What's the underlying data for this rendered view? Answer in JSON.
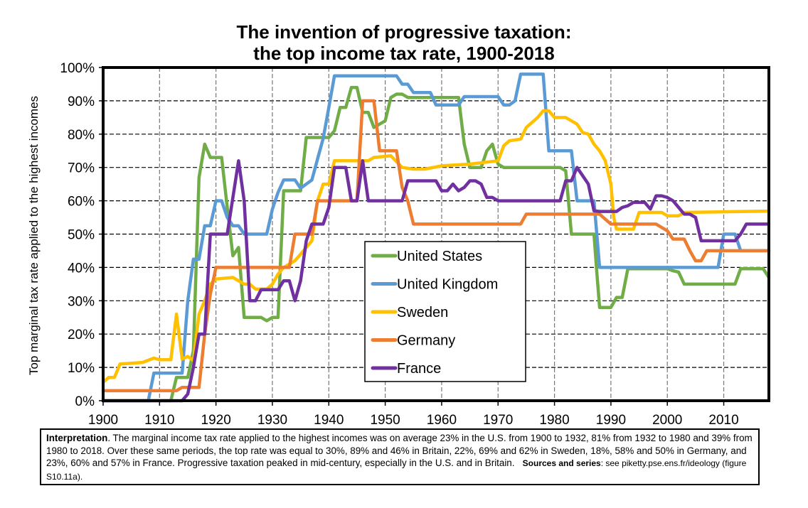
{
  "chart_data": {
    "type": "line",
    "title": [
      "The invention of progressive taxation:",
      "the top income tax rate, 1900-2018"
    ],
    "xlabel": "",
    "ylabel": "Top marginal tax rate applied to the highest incomes",
    "xlim": [
      1900,
      2018
    ],
    "ylim": [
      0,
      100
    ],
    "x_ticks": [
      1900,
      1910,
      1920,
      1930,
      1940,
      1950,
      1960,
      1970,
      1980,
      1990,
      2000,
      2010
    ],
    "y_ticks": [
      0,
      10,
      20,
      30,
      40,
      50,
      60,
      70,
      80,
      90,
      100
    ],
    "y_tick_labels": [
      "0%",
      "10%",
      "20%",
      "30%",
      "40%",
      "50%",
      "60%",
      "70%",
      "80%",
      "90%",
      "100%"
    ],
    "grid": true,
    "legend_position": "center-bottom",
    "series": [
      {
        "name": "United States",
        "color": "#70AD47",
        "points": [
          [
            1900,
            0
          ],
          [
            1912,
            0
          ],
          [
            1913,
            7
          ],
          [
            1915,
            7
          ],
          [
            1916,
            15
          ],
          [
            1917,
            67
          ],
          [
            1918,
            77
          ],
          [
            1919,
            73
          ],
          [
            1921,
            73
          ],
          [
            1922,
            58
          ],
          [
            1923,
            43.5
          ],
          [
            1924,
            46
          ],
          [
            1925,
            25
          ],
          [
            1928,
            25
          ],
          [
            1929,
            24
          ],
          [
            1930,
            25
          ],
          [
            1931,
            25
          ],
          [
            1932,
            63
          ],
          [
            1935,
            63
          ],
          [
            1936,
            79
          ],
          [
            1940,
            79
          ],
          [
            1941,
            81
          ],
          [
            1942,
            88
          ],
          [
            1943,
            88
          ],
          [
            1944,
            94
          ],
          [
            1945,
            94
          ],
          [
            1946,
            86.5
          ],
          [
            1947,
            86.5
          ],
          [
            1948,
            82
          ],
          [
            1950,
            84
          ],
          [
            1951,
            91
          ],
          [
            1952,
            92
          ],
          [
            1953,
            92
          ],
          [
            1954,
            91
          ],
          [
            1963,
            91
          ],
          [
            1964,
            77
          ],
          [
            1965,
            70
          ],
          [
            1967,
            70
          ],
          [
            1968,
            75
          ],
          [
            1969,
            77
          ],
          [
            1970,
            71
          ],
          [
            1971,
            70
          ],
          [
            1981,
            70
          ],
          [
            1982,
            69
          ],
          [
            1983,
            50
          ],
          [
            1987,
            50
          ],
          [
            1987.5,
            38.5
          ],
          [
            1988,
            28
          ],
          [
            1990,
            28
          ],
          [
            1991,
            31
          ],
          [
            1992,
            31
          ],
          [
            1993,
            39.6
          ],
          [
            2000,
            39.6
          ],
          [
            2001,
            39
          ],
          [
            2002,
            38.6
          ],
          [
            2003,
            35
          ],
          [
            2012,
            35
          ],
          [
            2013,
            39.6
          ],
          [
            2017,
            39.6
          ],
          [
            2018,
            37
          ]
        ]
      },
      {
        "name": "United Kingdom",
        "color": "#5B9BD5",
        "points": [
          [
            1900,
            0
          ],
          [
            1908,
            0
          ],
          [
            1909,
            8.3
          ],
          [
            1914,
            8.3
          ],
          [
            1915,
            30
          ],
          [
            1916,
            42.5
          ],
          [
            1917,
            42.5
          ],
          [
            1918,
            52.5
          ],
          [
            1919,
            52.5
          ],
          [
            1920,
            60
          ],
          [
            1921,
            60
          ],
          [
            1922,
            55
          ],
          [
            1923,
            52.5
          ],
          [
            1924,
            52.5
          ],
          [
            1925,
            50
          ],
          [
            1929,
            50
          ],
          [
            1930,
            57.5
          ],
          [
            1931,
            62.5
          ],
          [
            1932,
            66.25
          ],
          [
            1934,
            66.25
          ],
          [
            1935,
            63.75
          ],
          [
            1937,
            66.25
          ],
          [
            1938,
            72.5
          ],
          [
            1939,
            78.75
          ],
          [
            1940,
            88
          ],
          [
            1941,
            97.5
          ],
          [
            1952,
            97.5
          ],
          [
            1953,
            95
          ],
          [
            1954,
            95
          ],
          [
            1955,
            92.5
          ],
          [
            1958,
            92.5
          ],
          [
            1959,
            88.75
          ],
          [
            1963,
            88.75
          ],
          [
            1964,
            91.25
          ],
          [
            1970,
            91.25
          ],
          [
            1971,
            88.75
          ],
          [
            1972,
            88.75
          ],
          [
            1973,
            90
          ],
          [
            1974,
            98
          ],
          [
            1978,
            98
          ],
          [
            1979,
            75
          ],
          [
            1983,
            75
          ],
          [
            1984,
            60
          ],
          [
            1987,
            60
          ],
          [
            1988,
            40
          ],
          [
            2009,
            40
          ],
          [
            2010,
            50
          ],
          [
            2012,
            50
          ],
          [
            2013,
            45
          ],
          [
            2018,
            45
          ]
        ]
      },
      {
        "name": "Sweden",
        "color": "#FFC000",
        "points": [
          [
            1900,
            5.5
          ],
          [
            1901,
            7
          ],
          [
            1902,
            7
          ],
          [
            1903,
            11
          ],
          [
            1907,
            11.5
          ],
          [
            1909,
            12.8
          ],
          [
            1910,
            12.3
          ],
          [
            1912,
            12.3
          ],
          [
            1913,
            26
          ],
          [
            1914,
            12.5
          ],
          [
            1915,
            13.3
          ],
          [
            1916,
            12
          ],
          [
            1917,
            26
          ],
          [
            1918,
            30
          ],
          [
            1919,
            35
          ],
          [
            1920,
            36.5
          ],
          [
            1923,
            37
          ],
          [
            1924,
            36
          ],
          [
            1925,
            35
          ],
          [
            1926,
            35
          ],
          [
            1927,
            33.5
          ],
          [
            1929,
            33.5
          ],
          [
            1930,
            35
          ],
          [
            1931,
            38
          ],
          [
            1932,
            40
          ],
          [
            1934,
            42
          ],
          [
            1936,
            46
          ],
          [
            1937,
            48
          ],
          [
            1938,
            60
          ],
          [
            1939,
            65
          ],
          [
            1940,
            65
          ],
          [
            1941,
            72
          ],
          [
            1943,
            72
          ],
          [
            1947,
            72
          ],
          [
            1948,
            73
          ],
          [
            1951,
            73.5
          ],
          [
            1953,
            70
          ],
          [
            1955,
            69.5
          ],
          [
            1957,
            69.5
          ],
          [
            1960,
            70.5
          ],
          [
            1965,
            71
          ],
          [
            1970,
            72
          ],
          [
            1971,
            76.5
          ],
          [
            1972,
            78
          ],
          [
            1974,
            78.5
          ],
          [
            1975,
            82
          ],
          [
            1977,
            85
          ],
          [
            1978,
            87
          ],
          [
            1979,
            87
          ],
          [
            1980,
            85
          ],
          [
            1982,
            85
          ],
          [
            1984,
            83
          ],
          [
            1985,
            80.5
          ],
          [
            1986,
            80
          ],
          [
            1987,
            77
          ],
          [
            1988,
            75
          ],
          [
            1989,
            72
          ],
          [
            1990,
            65
          ],
          [
            1990.5,
            55
          ],
          [
            1991,
            51.5
          ],
          [
            1994,
            51.5
          ],
          [
            1995,
            56.5
          ],
          [
            1998,
            56.5
          ],
          [
            1999,
            56.5
          ],
          [
            2000,
            55.5
          ],
          [
            2002,
            55.5
          ],
          [
            2003,
            56.5
          ],
          [
            2018,
            56.9
          ]
        ]
      },
      {
        "name": "Germany",
        "color": "#ED7D31",
        "points": [
          [
            1900,
            3
          ],
          [
            1913,
            3
          ],
          [
            1914,
            4
          ],
          [
            1917,
            4
          ],
          [
            1918,
            20
          ],
          [
            1919,
            32
          ],
          [
            1920,
            40
          ],
          [
            1933,
            40
          ],
          [
            1934,
            50
          ],
          [
            1937,
            50
          ],
          [
            1938,
            60
          ],
          [
            1939,
            60
          ],
          [
            1945,
            60
          ],
          [
            1946,
            90
          ],
          [
            1948,
            90
          ],
          [
            1949,
            75
          ],
          [
            1952,
            75
          ],
          [
            1953,
            64
          ],
          [
            1954,
            60
          ],
          [
            1955,
            53
          ],
          [
            1974,
            53
          ],
          [
            1975,
            56
          ],
          [
            1988,
            56
          ],
          [
            1990,
            53
          ],
          [
            1998,
            53
          ],
          [
            2000,
            51
          ],
          [
            2001,
            48.5
          ],
          [
            2003,
            48.5
          ],
          [
            2004,
            45
          ],
          [
            2005,
            42
          ],
          [
            2006,
            42
          ],
          [
            2007,
            45
          ],
          [
            2008,
            45
          ],
          [
            2018,
            45
          ]
        ]
      },
      {
        "name": "France",
        "color": "#7030A0",
        "points": [
          [
            1900,
            0
          ],
          [
            1914,
            0
          ],
          [
            1915,
            2
          ],
          [
            1916,
            10
          ],
          [
            1917,
            20
          ],
          [
            1918,
            20
          ],
          [
            1919,
            50
          ],
          [
            1922,
            50
          ],
          [
            1924,
            72
          ],
          [
            1925,
            60
          ],
          [
            1926,
            30
          ],
          [
            1927,
            30
          ],
          [
            1928,
            33.3
          ],
          [
            1931,
            33.3
          ],
          [
            1932,
            36
          ],
          [
            1933,
            36
          ],
          [
            1934,
            30
          ],
          [
            1935,
            36
          ],
          [
            1936,
            48
          ],
          [
            1937,
            53
          ],
          [
            1939,
            53
          ],
          [
            1940,
            58
          ],
          [
            1941,
            70
          ],
          [
            1943,
            70
          ],
          [
            1944,
            60
          ],
          [
            1945,
            60
          ],
          [
            1946,
            72
          ],
          [
            1947,
            60
          ],
          [
            1953,
            60
          ],
          [
            1954,
            66
          ],
          [
            1959,
            66
          ],
          [
            1960,
            63
          ],
          [
            1961,
            63
          ],
          [
            1962,
            65
          ],
          [
            1963,
            63
          ],
          [
            1964,
            64
          ],
          [
            1965,
            66
          ],
          [
            1966,
            66
          ],
          [
            1967,
            65
          ],
          [
            1968,
            61
          ],
          [
            1969,
            61
          ],
          [
            1970,
            60
          ],
          [
            1981,
            60
          ],
          [
            1982,
            66
          ],
          [
            1983,
            66
          ],
          [
            1984,
            70
          ],
          [
            1986,
            65
          ],
          [
            1987,
            57
          ],
          [
            1988,
            56.8
          ],
          [
            1991,
            56.8
          ],
          [
            1992,
            58
          ],
          [
            1993,
            58.5
          ],
          [
            1994,
            59.5
          ],
          [
            1996,
            59.5
          ],
          [
            1997,
            57.5
          ],
          [
            1998,
            61.5
          ],
          [
            1999,
            61.5
          ],
          [
            2000,
            61
          ],
          [
            2001,
            60
          ],
          [
            2002,
            58
          ],
          [
            2003,
            56
          ],
          [
            2004,
            56
          ],
          [
            2005,
            55
          ],
          [
            2006,
            48
          ],
          [
            2012,
            48
          ],
          [
            2013,
            50
          ],
          [
            2014,
            53
          ],
          [
            2018,
            53
          ]
        ]
      }
    ]
  },
  "interpretation": {
    "heading": "Interpretation",
    "body": ". The marginal income tax rate applied to the highest incomes was on average 23% in the U.S. from 1900 to 1932, 81% from 1932 to 1980 and 39% from 1980 to 2018. Over these same periods, the top rate was equal to 30%, 89% and 46% in Britain, 22%, 69% and 62% in Sweden, 18%, 58% and 50% in Germany, and 23%, 60% and 57% in France. Progressive taxation peaked in mid-century, especially in the U.S. and in Britain.",
    "sources_label": "Sources and series",
    "sources_text": ": see piketty.pse.ens.fr/ideology (figure S10.11a)."
  }
}
